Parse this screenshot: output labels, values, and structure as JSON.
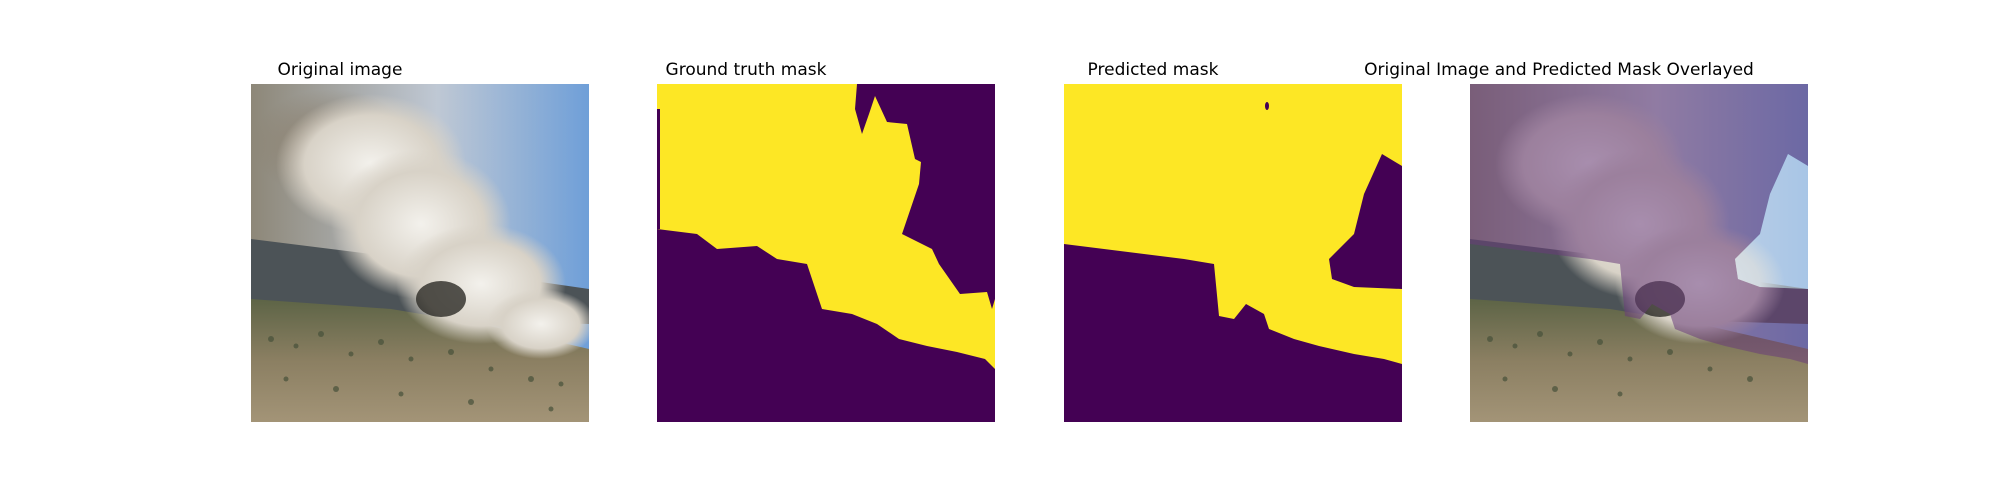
{
  "figure": {
    "panels": [
      {
        "title": "Original image"
      },
      {
        "title": "Ground truth mask"
      },
      {
        "title": "Predicted mask"
      },
      {
        "title": "Original Image and Predicted Mask Overlayed"
      }
    ]
  },
  "colors": {
    "mask_foreground": "#fde725",
    "mask_background": "#440154",
    "overlay_tint": "#6a3d7a",
    "sky": "#8fb4dc",
    "smoke": "#d9d4cc",
    "hillside": "#7d7456"
  }
}
